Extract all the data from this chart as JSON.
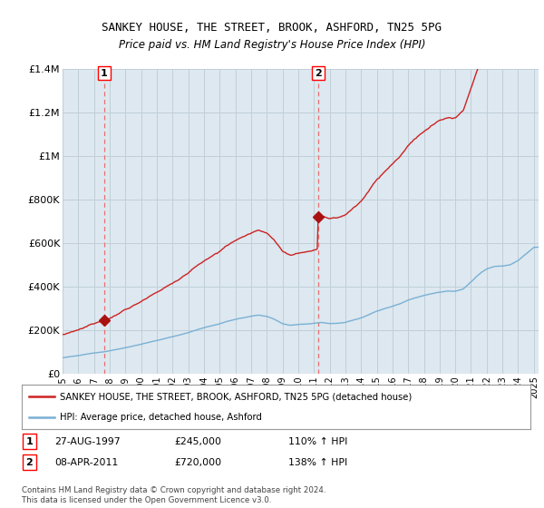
{
  "title": "SANKEY HOUSE, THE STREET, BROOK, ASHFORD, TN25 5PG",
  "subtitle": "Price paid vs. HM Land Registry's House Price Index (HPI)",
  "legend_line1": "SANKEY HOUSE, THE STREET, BROOK, ASHFORD, TN25 5PG (detached house)",
  "legend_line2": "HPI: Average price, detached house, Ashford",
  "transaction1_date": "27-AUG-1997",
  "transaction1_price": "£245,000",
  "transaction1_hpi": "110% ↑ HPI",
  "transaction2_date": "08-APR-2011",
  "transaction2_price": "£720,000",
  "transaction2_hpi": "138% ↑ HPI",
  "footer": "Contains HM Land Registry data © Crown copyright and database right 2024.\nThis data is licensed under the Open Government Licence v3.0.",
  "ylim": [
    0,
    1400000
  ],
  "yticks": [
    0,
    200000,
    400000,
    600000,
    800000,
    1000000,
    1200000,
    1400000
  ],
  "ytick_labels": [
    "£0",
    "£200K",
    "£400K",
    "£600K",
    "£800K",
    "£1M",
    "£1.2M",
    "£1.4M"
  ],
  "hpi_color": "#7ab0d4",
  "price_color": "#cc2222",
  "vline_color": "#e87070",
  "marker_color": "#aa1111",
  "plot_bg_color": "#dde8f0",
  "grid_color": "#c0cfd8",
  "transaction1_year": 1997.65,
  "transaction2_year": 2011.27,
  "transaction1_value": 245000,
  "transaction2_value": 720000,
  "hpi_anchors_x": [
    1995,
    1996,
    1997,
    1998,
    1999,
    2000,
    2001,
    2002,
    2003,
    2004,
    2005,
    2006,
    2007,
    2007.5,
    2008,
    2008.5,
    2009,
    2009.5,
    2010,
    2010.5,
    2011,
    2011.5,
    2012,
    2012.5,
    2013,
    2013.5,
    2014,
    2014.5,
    2015,
    2015.5,
    2016,
    2016.5,
    2017,
    2017.5,
    2018,
    2018.5,
    2019,
    2019.5,
    2020,
    2020.5,
    2021,
    2021.5,
    2022,
    2022.5,
    2023,
    2023.5,
    2024,
    2024.5,
    2025
  ],
  "hpi_anchors_y": [
    72000,
    80000,
    92000,
    104000,
    118000,
    135000,
    150000,
    168000,
    188000,
    210000,
    228000,
    248000,
    262000,
    268000,
    262000,
    248000,
    228000,
    222000,
    226000,
    228000,
    232000,
    236000,
    232000,
    234000,
    238000,
    248000,
    258000,
    272000,
    288000,
    300000,
    310000,
    322000,
    338000,
    350000,
    360000,
    368000,
    374000,
    378000,
    376000,
    388000,
    420000,
    456000,
    480000,
    492000,
    494000,
    500000,
    520000,
    550000,
    580000
  ],
  "xlim_left": 1995,
  "xlim_right": 2025.3
}
